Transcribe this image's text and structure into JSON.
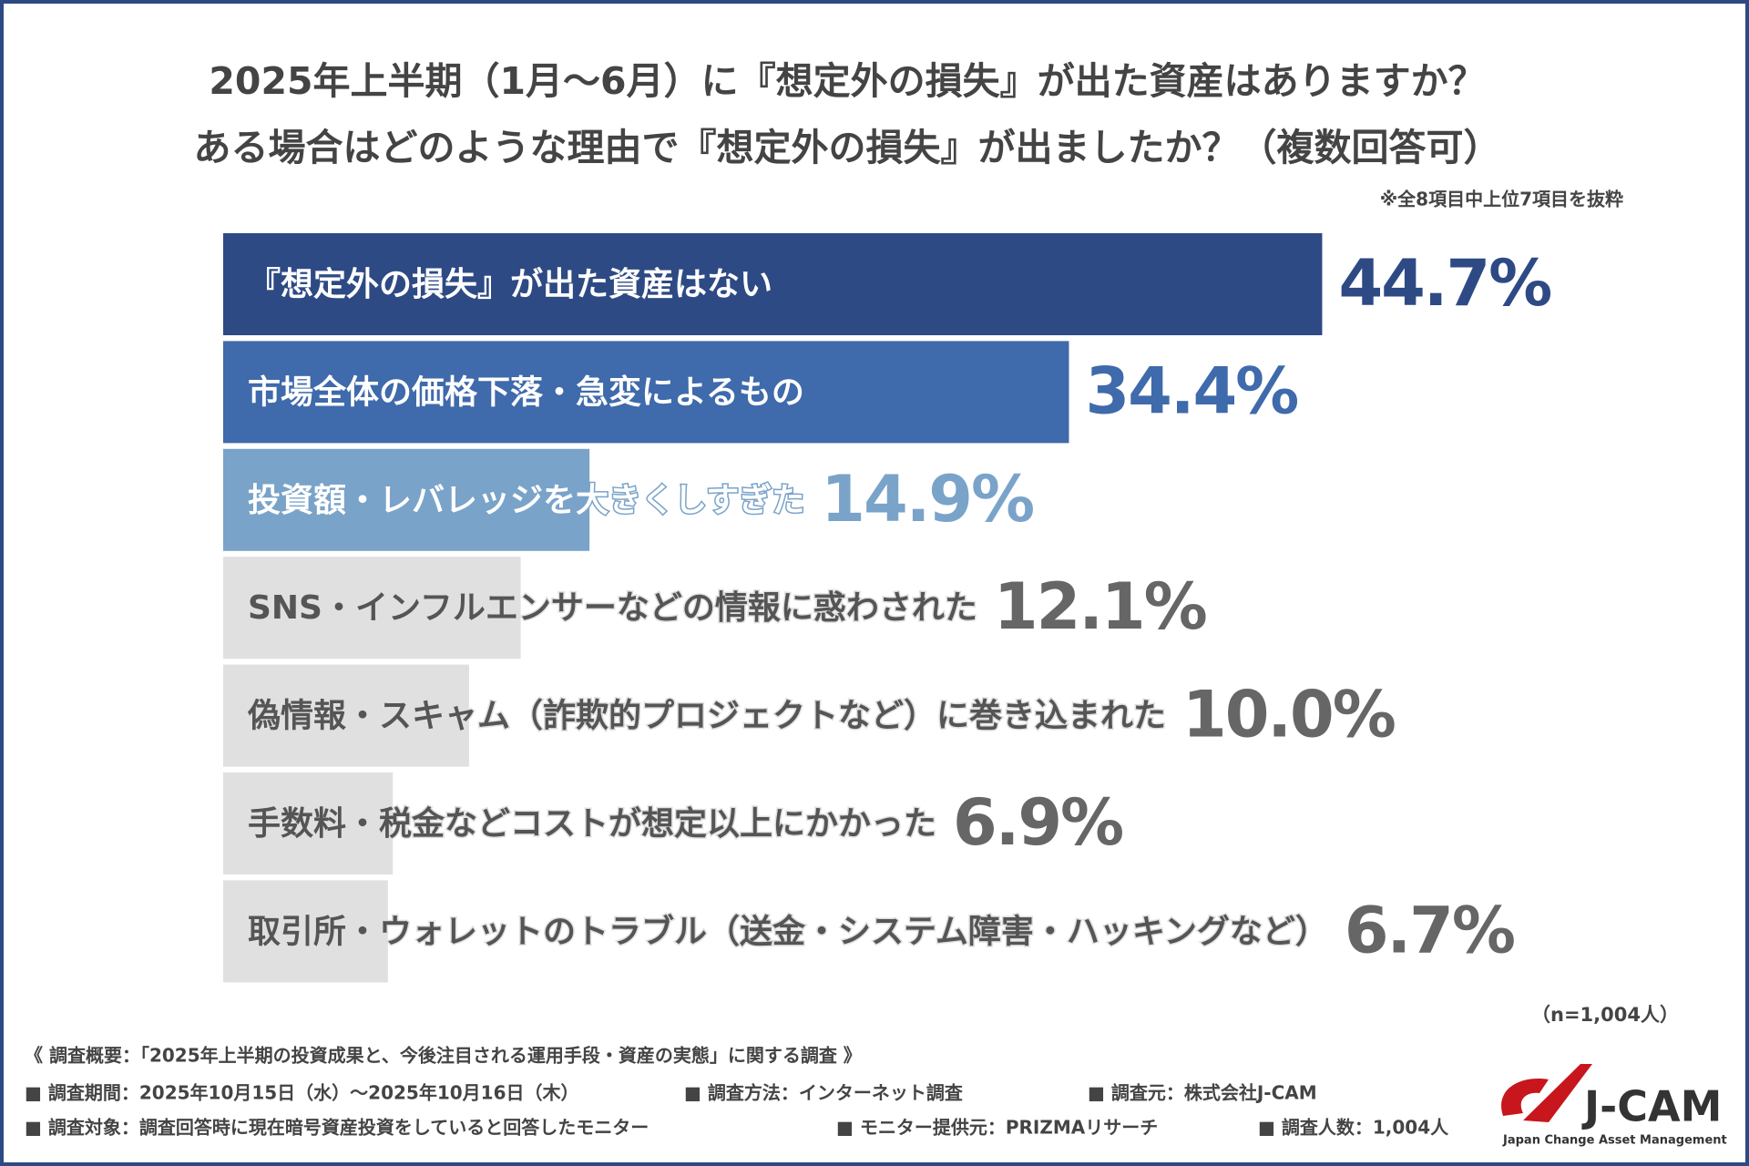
{
  "chart_data": {
    "type": "bar",
    "title": [
      "2025年上半期（1月〜6月）に『想定外の損失』が出た資産はありますか？",
      "ある場合はどのような理由で『想定外の損失』が出ましたか？（複数回答可）"
    ],
    "note": "※全8項目中上位7項目を抜粋",
    "categories": [
      "『想定外の損失』が出た資産はない",
      "市場全体の価格下落・急変によるもの",
      "投資額・レバレッジを大きくしすぎた",
      "SNS・インフルエンサーなどの情報に惑わされた",
      "偽情報・スキャム（詐欺的プロジェクトなど）に巻き込まれた",
      "手数料・税金などコストが想定以上にかかった",
      "取引所・ウォレットのトラブル（送金・システム障害・ハッキングなど）"
    ],
    "values": [
      44.7,
      34.4,
      14.9,
      12.1,
      10.0,
      6.9,
      6.7
    ],
    "value_labels": [
      "44.7%",
      "34.4%",
      "14.9%",
      "12.1%",
      "10.0%",
      "6.9%",
      "6.7%"
    ],
    "colors": [
      "#2e4a85",
      "#3f6aab",
      "#7aa3c9",
      "#e0e0e0",
      "#e0e0e0",
      "#e0e0e0",
      "#e0e0e0"
    ],
    "label_colors": [
      "#ffffff",
      "#ffffff",
      "#ffffff",
      "#555555",
      "#555555",
      "#555555",
      "#555555"
    ],
    "value_label_colors": [
      "#2e4a85",
      "#3f6aab",
      "#7aa3c9",
      "#666666",
      "#666666",
      "#666666",
      "#666666"
    ],
    "sample": "（n=1,004人）"
  },
  "footer": {
    "summary": "《 調査概要：「2025年上半期の投資成果と、今後注目される運用手段・資産の実態」に関する調査 》",
    "rows": [
      [
        "■ 調査期間：2025年10月15日（水）～2025年10月16日（木）",
        "■ 調査方法：インターネット調査",
        "■ 調査元：株式会社J-CAM"
      ],
      [
        "■ 調査対象：調査回答時に現在暗号資産投資をしていると回答したモニター",
        "■ モニター提供元：PRIZMAリサーチ",
        "■ 調査人数：1,004人"
      ]
    ]
  },
  "logo": {
    "name": "J-CAM",
    "tagline": "Japan Change Asset Management"
  }
}
